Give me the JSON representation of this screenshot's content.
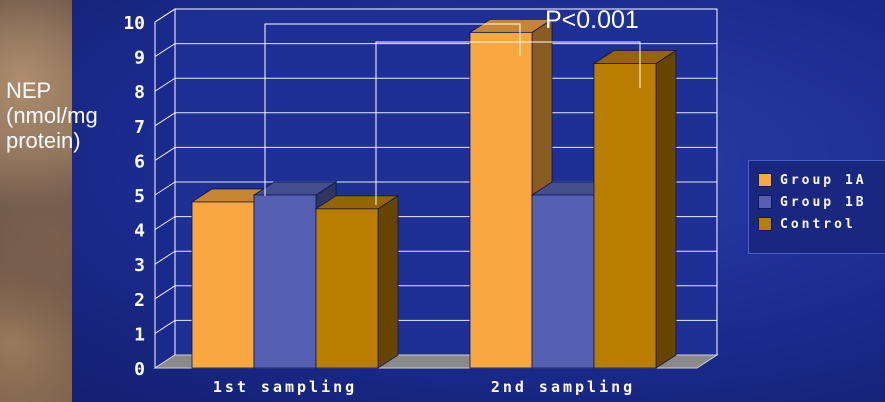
{
  "chart_data": {
    "type": "bar",
    "ylabel": "NEP\n(nmol/mg\nprotein)",
    "categories": [
      "1st sampling",
      "2nd sampling"
    ],
    "series": [
      {
        "name": "Group 1A",
        "values": [
          4.8,
          9.7
        ]
      },
      {
        "name": "Group 1B",
        "values": [
          5.0,
          5.0
        ]
      },
      {
        "name": "Control",
        "values": [
          4.6,
          8.8
        ]
      }
    ],
    "ylim": [
      0,
      10
    ],
    "yticks": [
      "0",
      "1",
      "2",
      "3",
      "4",
      "5",
      "6",
      "7",
      "8",
      "9",
      "10"
    ],
    "grid": true,
    "legend_position": "right",
    "annotation": "P<0.001",
    "colors": {
      "Group 1A": "#f9a740",
      "Group 1B": "#5560b2",
      "Control": "#b97e00",
      "floor": "#8a8a8a",
      "grid": "#ffffff"
    }
  }
}
